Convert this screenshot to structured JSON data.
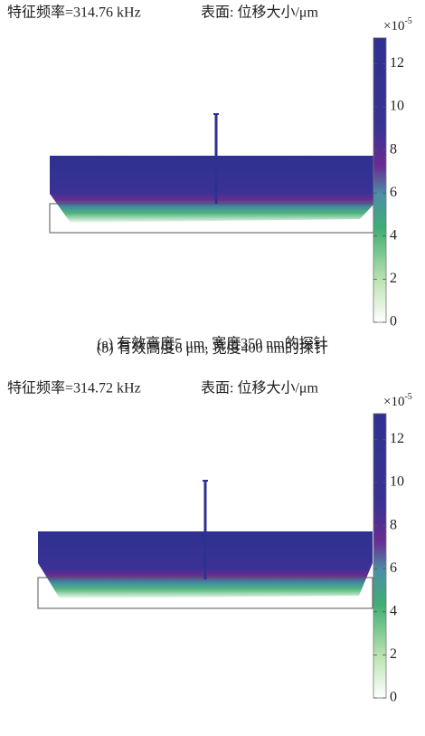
{
  "panels": [
    {
      "title": "特征频率=314.76 kHz",
      "surface": "表面: 位移大小/μm",
      "caption": "(a) 有效高度5 μm, 宽度350 nm的探针",
      "colorbar": {
        "base": "×10",
        "exponent": "-5",
        "range": [
          0,
          13.2
        ],
        "ticks": [
          0,
          2,
          4,
          6,
          8,
          10,
          12
        ]
      }
    },
    {
      "title": "特征频率=314.72 kHz",
      "surface": "表面: 位移大小/μm",
      "caption": "(b) 有效高度6 μm, 宽度400 nm的探针",
      "colorbar": {
        "base": "×10",
        "exponent": "-5",
        "range": [
          0,
          13.2
        ],
        "ticks": [
          0,
          2,
          4,
          6,
          8,
          10,
          12
        ]
      }
    }
  ]
}
